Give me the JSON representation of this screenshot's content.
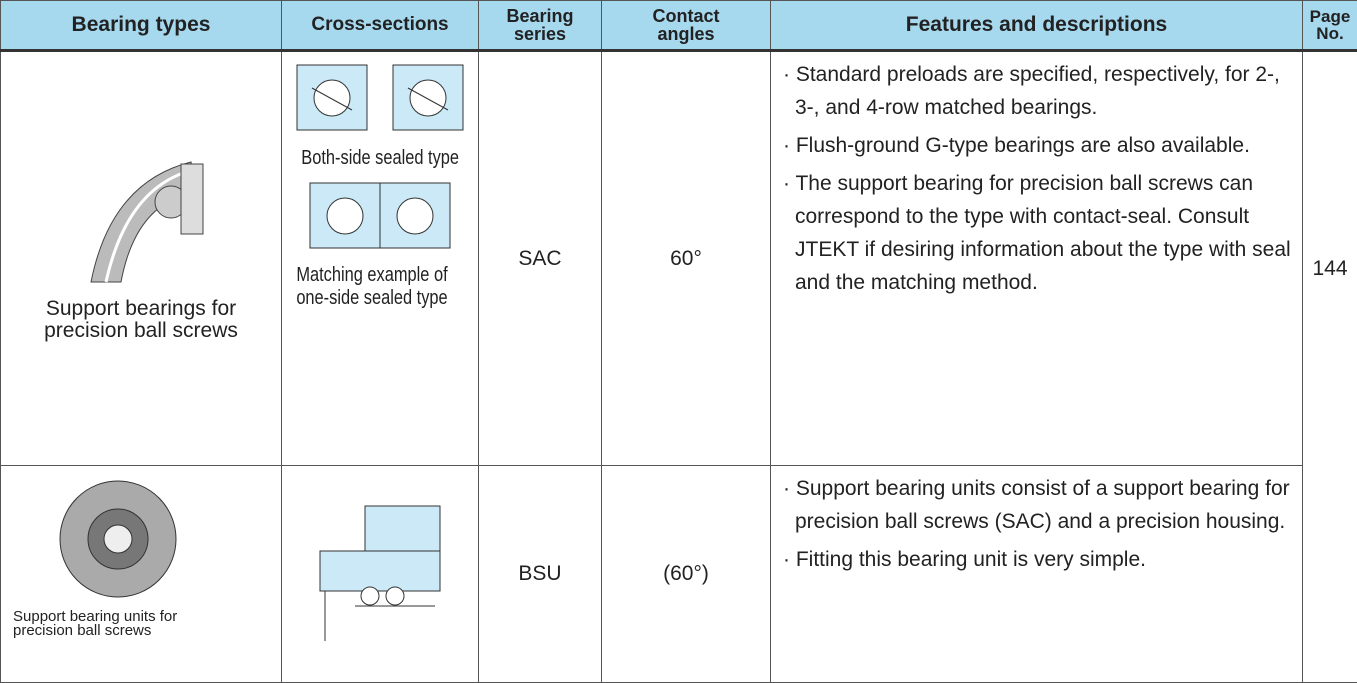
{
  "header": {
    "columns": [
      "Bearing types",
      "Cross-sections",
      "Bearing series",
      "Contact angles",
      "Features and descriptions",
      "Page No."
    ]
  },
  "rows": [
    {
      "type": "Support bearings for precision ball screws",
      "cross_section_captions": [
        "Both-side sealed type",
        "Matching example of one-side sealed type"
      ],
      "series": "SAC",
      "angle": "60°",
      "features": [
        "· Standard preloads are specified, respectively, for 2-, 3-, and 4-row matched bearings.",
        "· Flush-ground G-type bearings are also available.",
        "· The support bearing for precision ball screws can correspond to the type with contact-seal. Consult JTEKT if desiring information about the type with seal and the matching method."
      ],
      "page": "144"
    },
    {
      "type": "Support bearing units for precision ball screws",
      "series": "BSU",
      "angle": "(60°)",
      "features": [
        "· Support bearing units consist of a support bearing for precision ball screws (SAC) and a precision housing.",
        "· Fitting this bearing unit is very simple."
      ]
    }
  ]
}
